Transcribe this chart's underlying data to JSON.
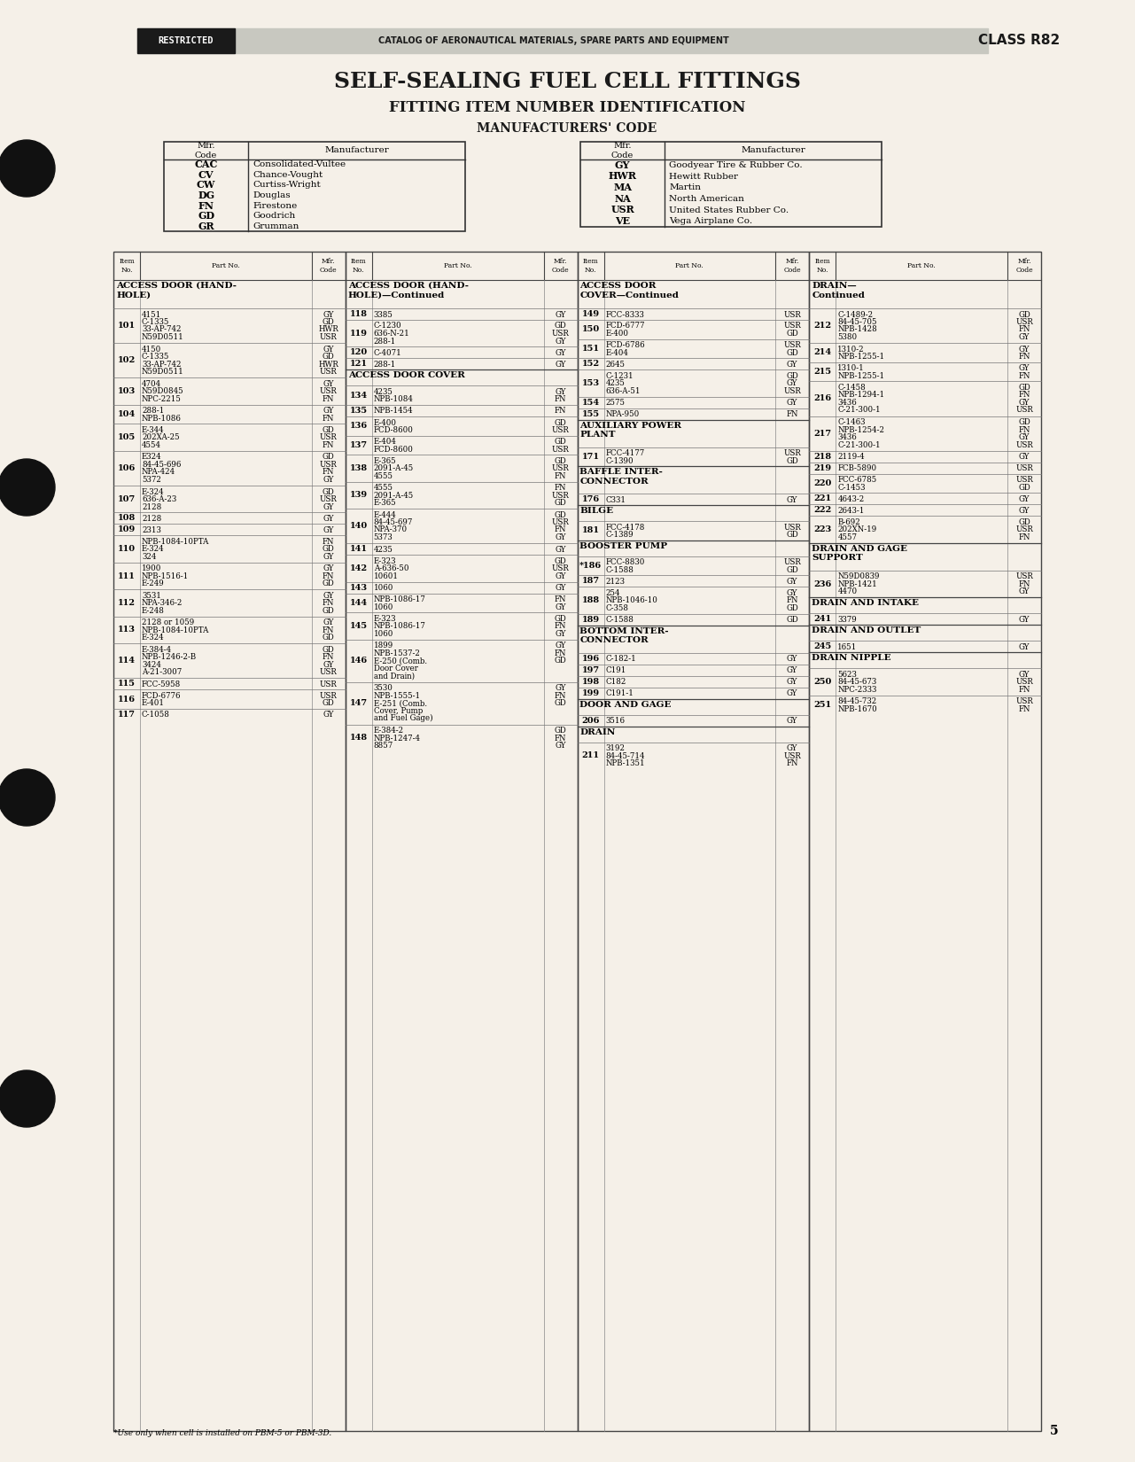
{
  "bg_color": "#f5f0e8",
  "page_num": "5",
  "header_text": "CATALOG OF AERONAUTICAL MATERIALS, SPARE PARTS AND EQUIPMENT",
  "class_text": "CLASS R82",
  "restricted_text": "RESTRICTED",
  "title1": "SELF-SEALING FUEL CELL FITTINGS",
  "title2": "FITTING ITEM NUMBER IDENTIFICATION",
  "title3": "MANUFACTURERS' CODE",
  "mfr_left": [
    [
      "CAC",
      "Consolidated-Vultee"
    ],
    [
      "CV",
      "Chance-Vought"
    ],
    [
      "CW",
      "Curtiss-Wright"
    ],
    [
      "DG",
      "Douglas"
    ],
    [
      "FN",
      "Firestone"
    ],
    [
      "GD",
      "Goodrich"
    ],
    [
      "GR",
      "Grumman"
    ]
  ],
  "mfr_right": [
    [
      "GY",
      "Goodyear Tire & Rubber Co."
    ],
    [
      "HWR",
      "Hewitt Rubber"
    ],
    [
      "MA",
      "Martin"
    ],
    [
      "NA",
      "North American"
    ],
    [
      "USR",
      "United States Rubber Co."
    ],
    [
      "VE",
      "Vega Airplane Co."
    ]
  ],
  "col1_header": "ACCESS DOOR (HAND-\nHOLE)",
  "col2_header": "ACCESS DOOR (HAND-\nHOLE)—Continued",
  "col3_header": "ACCESS DOOR\nCOVER—Continued",
  "col4_header": "DRAIN—\nContinued",
  "col1_data": [
    [
      "101",
      "4151\nC-1335\n33-AP-742\nN59D0511",
      "GY\nGD\nHWR\nUSR"
    ],
    [
      "102",
      "4150\nC-1335\n33-AP-742\nN59D0511",
      "GY\nGD\nHWR\nUSR"
    ],
    [
      "103",
      "4704\nN59D0845\nNPC-2215",
      "GY\nUSR\nFN"
    ],
    [
      "104",
      "288-1\nNPB-1086",
      "GY\nFN"
    ],
    [
      "105",
      "E-344\n202XA-25\n4554",
      "GD\nUSR\nFN"
    ],
    [
      "106",
      "E324\n84-45-696\nNPA-424\n5372",
      "GD\nUSR\nFN\nGY"
    ],
    [
      "107",
      "E-324\n636-A-23\n2128",
      "GD\nUSR\nGY"
    ],
    [
      "108",
      "2128",
      "GY"
    ],
    [
      "109",
      "2313",
      "GY"
    ],
    [
      "110",
      "NPB-1084-10PTA\nE-324\n324",
      "FN\nGD\nGY"
    ],
    [
      "111",
      "1900\nNPB-1516-1\nE-249",
      "GY\nFN\nGD"
    ],
    [
      "112",
      "3531\nNPA-346-2\nE-248",
      "GY\nFN\nGD"
    ],
    [
      "113",
      "2128 or 1059\nNPB-1084-10PTA\nE-324",
      "GY\nFN\nGD"
    ],
    [
      "114",
      "E-384-4\nNPB-1246-2-B\n3424\nA-21-3007",
      "GD\nFN\nGY\nUSR"
    ],
    [
      "115",
      "FCC-5958",
      "USR"
    ],
    [
      "116",
      "FCD-6776\nE-401",
      "USR\nGD"
    ],
    [
      "117",
      "C-1058",
      "GY"
    ]
  ],
  "col2_data": [
    [
      "118",
      "3385",
      "GY"
    ],
    [
      "119",
      "C-1230\n636-N-21\n288-1",
      "GD\nUSR\nGY"
    ],
    [
      "120",
      "C-4071",
      "GY"
    ],
    [
      "121",
      "288-1",
      "GY"
    ],
    [
      "ACCESS DOOR COVER",
      "",
      ""
    ],
    [
      "134",
      "4235\nNPB-1084",
      "GY\nFN"
    ],
    [
      "135",
      "NPB-1454",
      "FN"
    ],
    [
      "136",
      "E-400\nFCD-8600",
      "GD\nUSR"
    ],
    [
      "137",
      "E-404\nFCD-8600",
      "GD\nUSR"
    ],
    [
      "138",
      "E-365\n2091-A-45\n4555",
      "GD\nUSR\nFN"
    ],
    [
      "139",
      "4555\n2091-A-45\nE-365",
      "FN\nUSR\nGD"
    ],
    [
      "140",
      "E-444\n84-45-697\nNPA-370\n5373",
      "GD\nUSR\nFN\nGY"
    ],
    [
      "141",
      "4235",
      "GY"
    ],
    [
      "142",
      "E-323\nA-636-50\n10601",
      "GD\nUSR\nGY"
    ],
    [
      "143",
      "1060",
      "GY"
    ],
    [
      "144",
      "NPB-1086-17\n1060",
      "FN\nGY"
    ],
    [
      "145",
      "E-323\nNPB-1086-17\n1060",
      "GD\nFN\nGY"
    ],
    [
      "146",
      "1899\nNPB-1537-2\nE-250 (Comb.\nDoor Cover\nand Drain)",
      "GY\nFN\nGD"
    ],
    [
      "147",
      "3530\nNPB-1555-1\nE-251 (Comb.\nCover, Pump\nand Fuel Gage)",
      "GY\nFN\nGD"
    ],
    [
      "148",
      "E-384-2\nNPB-1247-4\n8857",
      "GD\nFN\nGY"
    ]
  ],
  "col3_data": [
    [
      "149",
      "FCC-8333",
      "USR"
    ],
    [
      "150",
      "FCD-6777\nE-400",
      "USR\nGD"
    ],
    [
      "151",
      "FCD-6786\nE-404",
      "USR\nGD"
    ],
    [
      "152",
      "2645",
      "GY"
    ],
    [
      "153",
      "C-1231\n4235\n636-A-51",
      "GD\nGY\nUSR"
    ],
    [
      "154",
      "2575",
      "GY"
    ],
    [
      "155",
      "NPA-950",
      "FN"
    ],
    [
      "AUXILIARY POWER\nPLANT",
      "",
      ""
    ],
    [
      "171",
      "FCC-4177\nC-1390",
      "USR\nGD"
    ],
    [
      "BAFFLE INTER-\nCONNECTOR",
      "",
      ""
    ],
    [
      "176",
      "C331",
      "GY"
    ],
    [
      "BILGE",
      "",
      ""
    ],
    [
      "181",
      "FCC-4178\nC-1389",
      "USR\nGD"
    ],
    [
      "BOOSTER PUMP",
      "",
      ""
    ],
    [
      "*186",
      "FCC-8830\nC-1588",
      "USR\nGD"
    ],
    [
      "187",
      "2123",
      "GY"
    ],
    [
      "188",
      "254\nNPB-1046-10\nC-358",
      "GY\nFN\nGD"
    ],
    [
      "189",
      "C-1588",
      "GD"
    ],
    [
      "BOTTOM INTER-\nCONNECTOR",
      "",
      ""
    ],
    [
      "196",
      "C-182-1",
      "GY"
    ],
    [
      "197",
      "C191",
      "GY"
    ],
    [
      "198",
      "C182",
      "GY"
    ],
    [
      "199",
      "C191-1",
      "GY"
    ],
    [
      "DOOR AND GAGE",
      "",
      ""
    ],
    [
      "206",
      "3516",
      "GY"
    ],
    [
      "DRAIN",
      "",
      ""
    ],
    [
      "211",
      "3192\n84-45-714\nNPB-1351",
      "GY\nUSR\nFN"
    ]
  ],
  "col4_data": [
    [
      "212",
      "C-1489-2\n84-45-705\nNPB-1428\n5380",
      "GD\nUSR\nFN\nGY"
    ],
    [
      "214",
      "1310-2\nNPB-1255-1",
      "GY\nFN"
    ],
    [
      "215",
      "1310-1\nNPB-1255-1",
      "GY\nFN"
    ],
    [
      "216",
      "C-1458\nNPB-1294-1\n3436\nC-21-300-1",
      "GD\nFN\nGY\nUSR"
    ],
    [
      "217",
      "C-1463\nNPB-1254-2\n3436\nC-21-300-1",
      "GD\nFN\nGY\nUSR"
    ],
    [
      "218",
      "2119-4",
      "GY"
    ],
    [
      "219",
      "FCB-5890",
      "USR"
    ],
    [
      "220",
      "FCC-6785\nC-1453",
      "USR\nGD"
    ],
    [
      "221",
      "4643-2",
      "GY"
    ],
    [
      "222",
      "2643-1",
      "GY"
    ],
    [
      "223",
      "B-692\n202XN-19\n4557",
      "GD\nUSR\nFN"
    ],
    [
      "DRAIN AND GAGE\nSUPPORT",
      "",
      ""
    ],
    [
      "236",
      "N59D0839\nNPB-1421\n4470",
      "USR\nFN\nGY"
    ],
    [
      "DRAIN AND INTAKE",
      "",
      ""
    ],
    [
      "241",
      "3379",
      "GY"
    ],
    [
      "DRAIN AND OUTLET",
      "",
      ""
    ],
    [
      "245",
      "1651",
      "GY"
    ],
    [
      "DRAIN NIPPLE",
      "",
      ""
    ],
    [
      "250",
      "5623\n84-45-673\nNPC-2333",
      "GY\nUSR\nFN"
    ],
    [
      "251",
      "84-45-732\nNPB-1670",
      "USR\nFN"
    ]
  ],
  "footnote": "*Use only when cell is installed on PBM-5 or PBM-3D."
}
